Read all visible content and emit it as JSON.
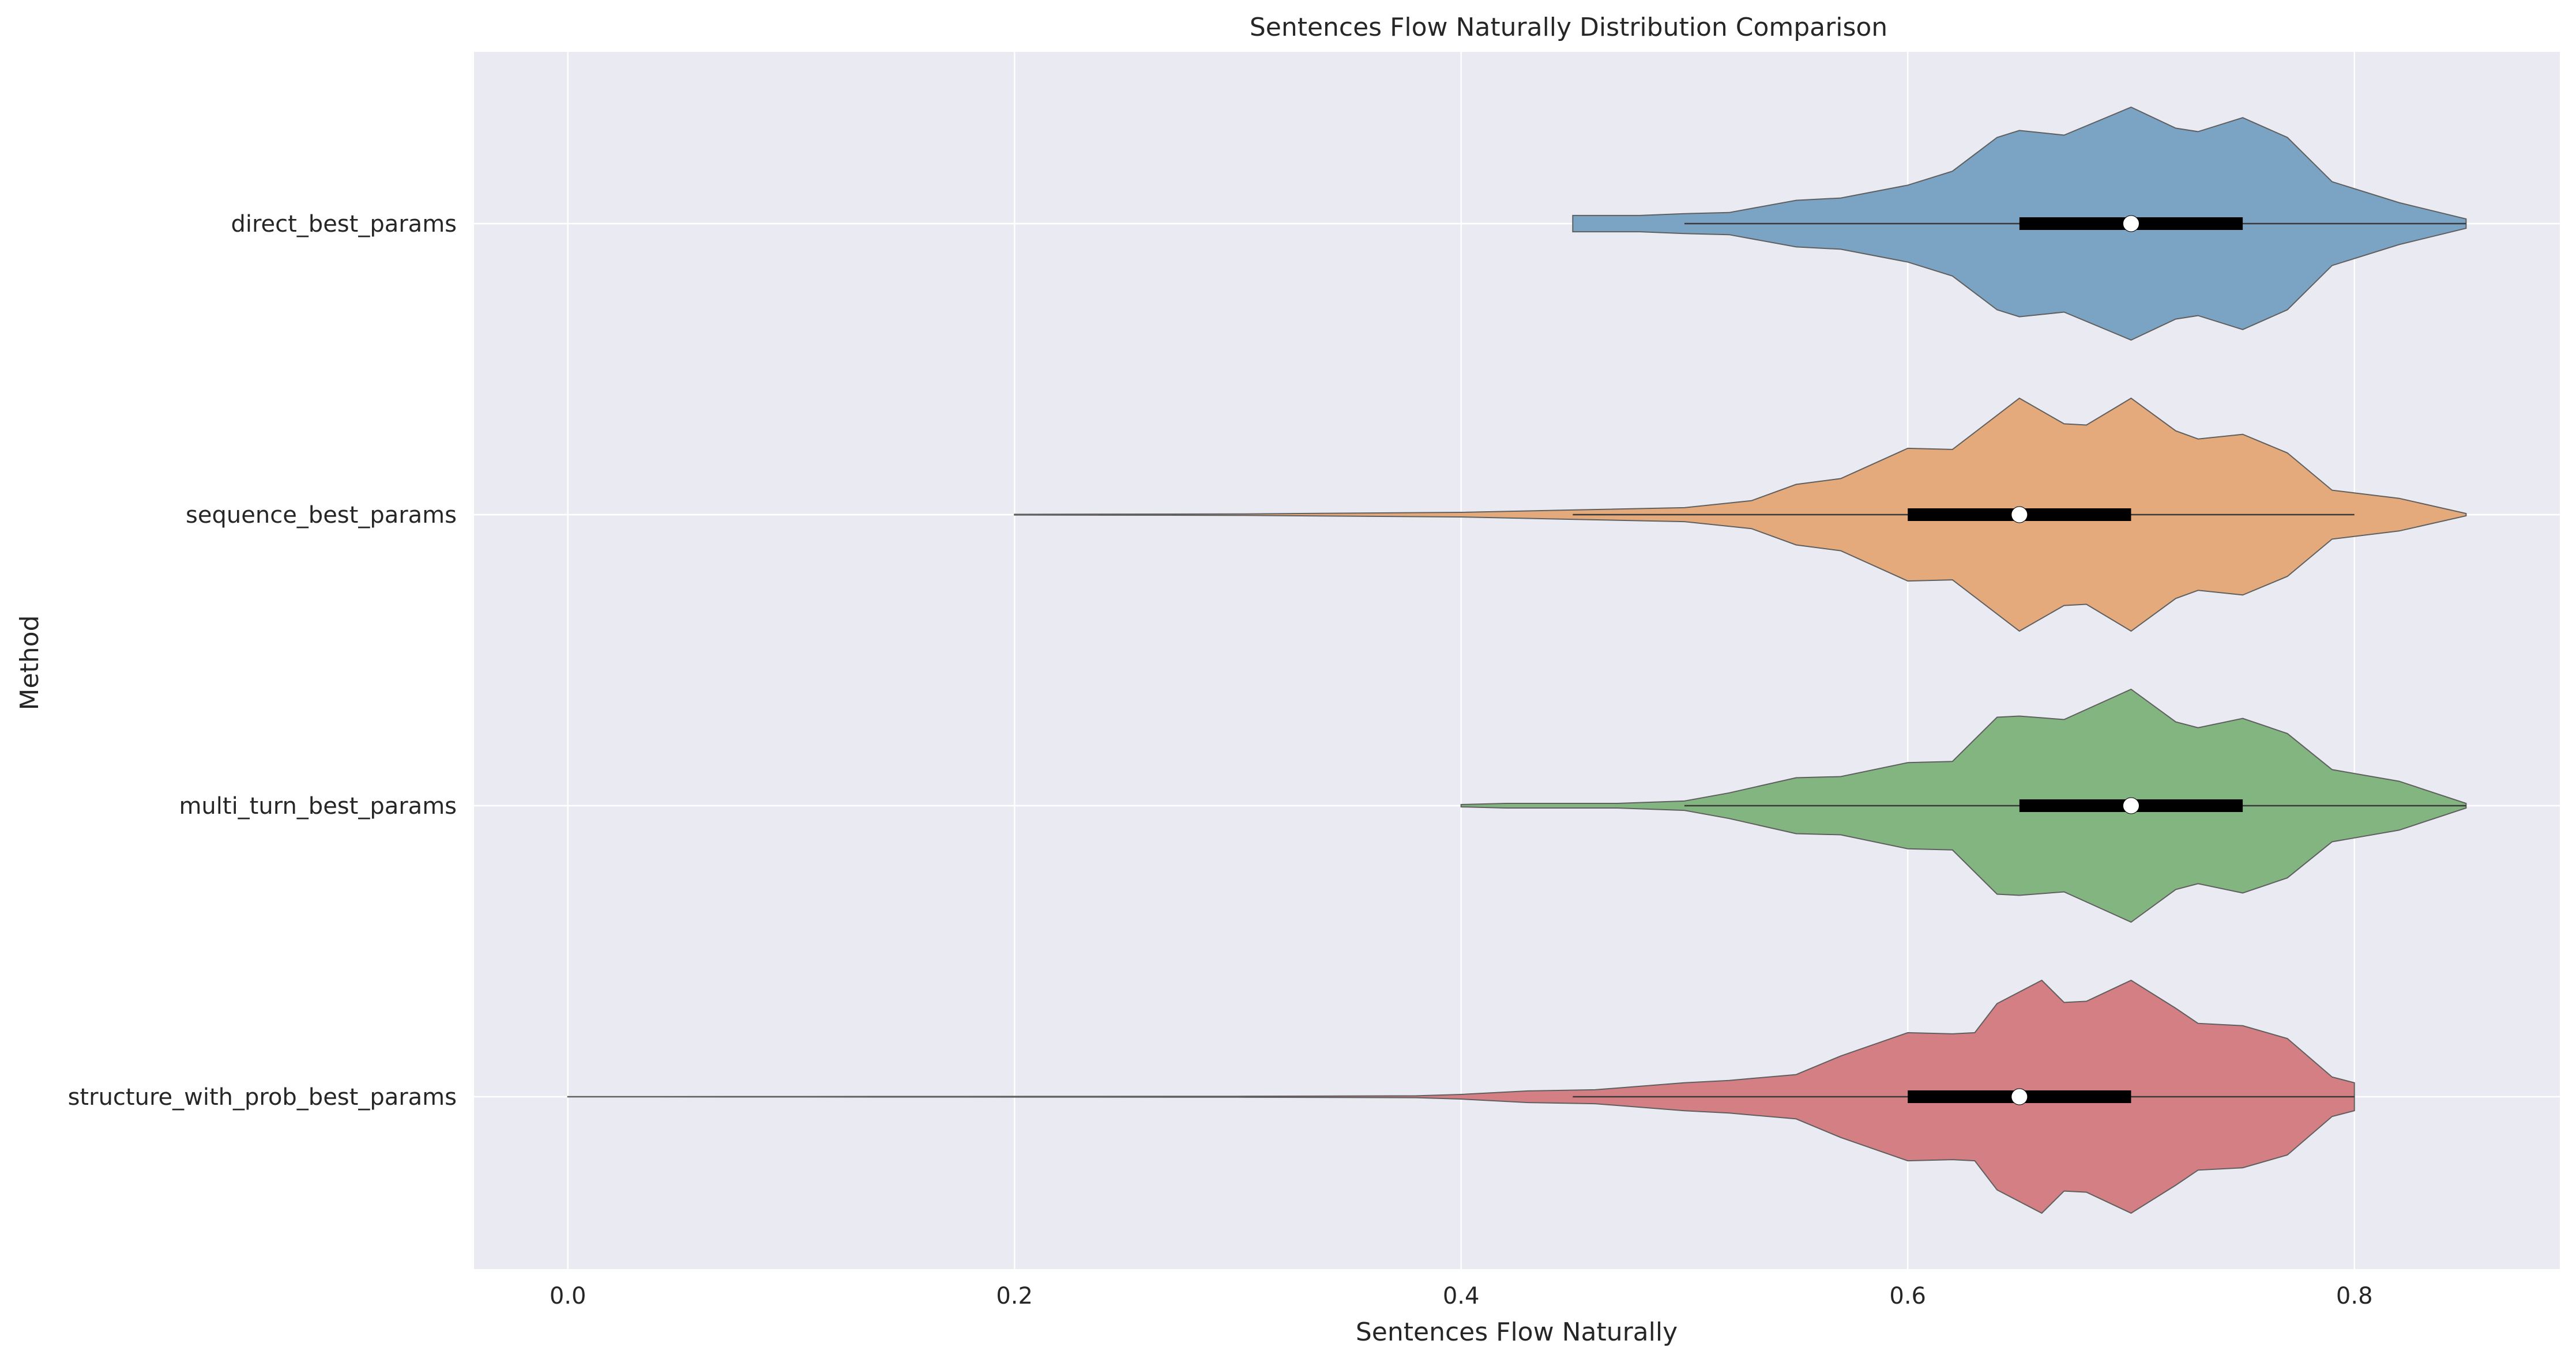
{
  "chart_data": {
    "type": "violin",
    "orientation": "horizontal",
    "title": "Sentences Flow Naturally Distribution Comparison",
    "xlabel": "Sentences Flow Naturally",
    "ylabel": "Method",
    "xlim": [
      -0.042,
      0.892
    ],
    "xticks": [
      0.0,
      0.2,
      0.4,
      0.6,
      0.8
    ],
    "xtick_labels": [
      "0.0",
      "0.2",
      "0.4",
      "0.6",
      "0.8"
    ],
    "grid": true,
    "background": "#eaeaf2",
    "series": [
      {
        "name": "direct_best_params",
        "color": "#7ba3c4",
        "min": 0.45,
        "whisker_low": 0.5,
        "q1": 0.65,
        "median": 0.7,
        "q3": 0.75,
        "whisker_high": 0.85,
        "max": 0.85,
        "density": [
          [
            0.45,
            0.07
          ],
          [
            0.48,
            0.07
          ],
          [
            0.5,
            0.085
          ],
          [
            0.52,
            0.095
          ],
          [
            0.55,
            0.2
          ],
          [
            0.57,
            0.22
          ],
          [
            0.6,
            0.33
          ],
          [
            0.62,
            0.45
          ],
          [
            0.64,
            0.74
          ],
          [
            0.65,
            0.8
          ],
          [
            0.67,
            0.76
          ],
          [
            0.7,
            1.0
          ],
          [
            0.72,
            0.82
          ],
          [
            0.73,
            0.79
          ],
          [
            0.75,
            0.91
          ],
          [
            0.77,
            0.74
          ],
          [
            0.79,
            0.36
          ],
          [
            0.82,
            0.18
          ],
          [
            0.85,
            0.04
          ]
        ]
      },
      {
        "name": "sequence_best_params",
        "color": "#e4aa7b",
        "min": 0.2,
        "whisker_low": 0.45,
        "q1": 0.6,
        "median": 0.65,
        "q3": 0.7,
        "whisker_high": 0.8,
        "max": 0.85,
        "density": [
          [
            0.2,
            0.003
          ],
          [
            0.3,
            0.006
          ],
          [
            0.4,
            0.02
          ],
          [
            0.45,
            0.04
          ],
          [
            0.5,
            0.06
          ],
          [
            0.53,
            0.12
          ],
          [
            0.55,
            0.26
          ],
          [
            0.57,
            0.31
          ],
          [
            0.6,
            0.57
          ],
          [
            0.62,
            0.56
          ],
          [
            0.65,
            1.0
          ],
          [
            0.67,
            0.78
          ],
          [
            0.68,
            0.77
          ],
          [
            0.7,
            1.0
          ],
          [
            0.72,
            0.72
          ],
          [
            0.73,
            0.65
          ],
          [
            0.75,
            0.69
          ],
          [
            0.77,
            0.53
          ],
          [
            0.79,
            0.21
          ],
          [
            0.82,
            0.14
          ],
          [
            0.85,
            0.01
          ]
        ]
      },
      {
        "name": "multi_turn_best_params",
        "color": "#82b580",
        "min": 0.4,
        "whisker_low": 0.5,
        "q1": 0.65,
        "median": 0.7,
        "q3": 0.75,
        "whisker_high": 0.85,
        "max": 0.85,
        "density": [
          [
            0.4,
            0.01
          ],
          [
            0.42,
            0.02
          ],
          [
            0.45,
            0.02
          ],
          [
            0.47,
            0.02
          ],
          [
            0.5,
            0.04
          ],
          [
            0.52,
            0.11
          ],
          [
            0.55,
            0.24
          ],
          [
            0.57,
            0.25
          ],
          [
            0.6,
            0.37
          ],
          [
            0.62,
            0.38
          ],
          [
            0.64,
            0.76
          ],
          [
            0.65,
            0.77
          ],
          [
            0.67,
            0.74
          ],
          [
            0.7,
            1.0
          ],
          [
            0.72,
            0.72
          ],
          [
            0.73,
            0.67
          ],
          [
            0.75,
            0.75
          ],
          [
            0.77,
            0.62
          ],
          [
            0.79,
            0.31
          ],
          [
            0.82,
            0.21
          ],
          [
            0.85,
            0.02
          ]
        ]
      },
      {
        "name": "structure_with_prob_best_params",
        "color": "#d47f83",
        "min": 0.0,
        "whisker_low": 0.45,
        "q1": 0.6,
        "median": 0.65,
        "q3": 0.7,
        "whisker_high": 0.8,
        "max": 0.8,
        "density": [
          [
            0.0,
            0.001
          ],
          [
            0.3,
            0.004
          ],
          [
            0.38,
            0.008
          ],
          [
            0.4,
            0.02
          ],
          [
            0.43,
            0.05
          ],
          [
            0.46,
            0.06
          ],
          [
            0.5,
            0.12
          ],
          [
            0.52,
            0.14
          ],
          [
            0.55,
            0.19
          ],
          [
            0.57,
            0.35
          ],
          [
            0.6,
            0.55
          ],
          [
            0.62,
            0.54
          ],
          [
            0.63,
            0.55
          ],
          [
            0.64,
            0.8
          ],
          [
            0.66,
            1.0
          ],
          [
            0.67,
            0.81
          ],
          [
            0.68,
            0.82
          ],
          [
            0.7,
            1.0
          ],
          [
            0.72,
            0.76
          ],
          [
            0.73,
            0.63
          ],
          [
            0.75,
            0.61
          ],
          [
            0.77,
            0.5
          ],
          [
            0.79,
            0.17
          ],
          [
            0.8,
            0.12
          ]
        ]
      }
    ]
  }
}
